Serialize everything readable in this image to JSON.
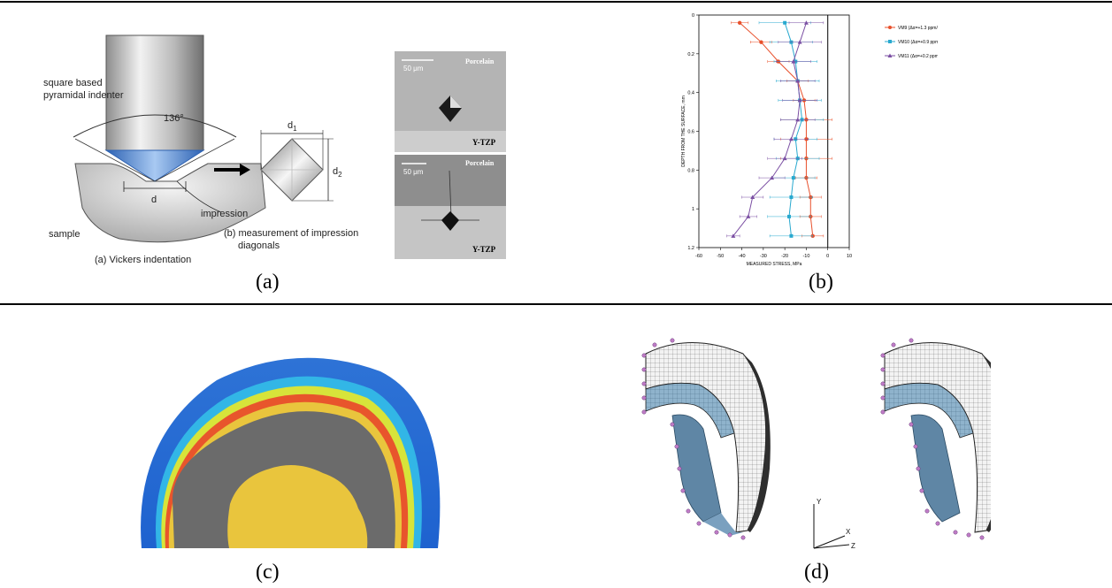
{
  "captions": {
    "a": "(a)",
    "b": "(b)",
    "c": "(c)",
    "d": "(d)"
  },
  "vickers": {
    "indenter_label_1": "square based",
    "indenter_label_2": "pyramidal indenter",
    "angle": "136°",
    "d1": "d",
    "d1_sub": "1",
    "d2": "d",
    "d2_sub": "2",
    "d": "d",
    "impression": "impression",
    "sample": "sample",
    "caption_a": "(a)  Vickers indentation",
    "caption_b1": "(b)  measurement of impression",
    "caption_b2": "diagonals"
  },
  "micrographs": {
    "top": {
      "scale": "50 μm",
      "upper": "Porcelain",
      "lower": "Y-TZP"
    },
    "bottom": {
      "scale": "50 μm",
      "upper": "Porcelain",
      "lower": "Y-TZP"
    }
  },
  "chart_data": {
    "type": "line",
    "xlabel": "MEASURED STRESS,  MPa",
    "ylabel": "DEPTH FROM THE SURFACE,  mm",
    "xlim": [
      -60,
      10
    ],
    "ylim": [
      0,
      1.2
    ],
    "xticks": [
      "-60",
      "-50",
      "-40",
      "-30",
      "-20",
      "-10",
      "0",
      "10"
    ],
    "yticks": [
      "0",
      "0.2",
      "0.4",
      "0.6",
      "0.8",
      "1",
      "1.2"
    ],
    "y_axis_inverted": true,
    "vertical_line_x": 0,
    "legend_position": "right",
    "series": [
      {
        "name": "VM9 (Δα=+1.3 ppm/°C)",
        "color": "#e8502b",
        "marker": "circle",
        "x": [
          -41,
          -31,
          -23,
          -14,
          -11,
          -10,
          -10,
          -10,
          -10,
          -8,
          -8,
          -7
        ],
        "y": [
          0.04,
          0.14,
          0.24,
          0.34,
          0.44,
          0.54,
          0.64,
          0.74,
          0.84,
          0.94,
          1.04,
          1.14
        ],
        "err": [
          4,
          5,
          5,
          5,
          5,
          12,
          12,
          12,
          5,
          5,
          5,
          5
        ]
      },
      {
        "name": "VM10 (Δα=+0.9 ppm/°C)",
        "color": "#29a9cf",
        "marker": "square",
        "x": [
          -20,
          -17,
          -15,
          -14,
          -13,
          -12,
          -15,
          -14,
          -16,
          -17,
          -18,
          -17
        ],
        "y": [
          0.04,
          0.14,
          0.24,
          0.34,
          0.44,
          0.54,
          0.64,
          0.74,
          0.84,
          0.94,
          1.04,
          1.14
        ],
        "err": [
          12,
          10,
          10,
          10,
          10,
          10,
          10,
          10,
          10,
          10,
          10,
          10
        ]
      },
      {
        "name": "VM11 (Δα=+0.2 ppm/°C)",
        "color": "#7b4fa3",
        "marker": "triangle",
        "x": [
          -10,
          -13,
          -16,
          -14,
          -13,
          -14,
          -17,
          -20,
          -26,
          -35,
          -37,
          -44
        ],
        "y": [
          0.04,
          0.14,
          0.24,
          0.34,
          0.44,
          0.54,
          0.64,
          0.74,
          0.84,
          0.94,
          1.04,
          1.14
        ],
        "err": [
          8,
          10,
          8,
          8,
          8,
          8,
          8,
          8,
          6,
          5,
          4,
          3
        ]
      }
    ]
  },
  "fea": {
    "axis_y": "Y",
    "axis_x": "X",
    "axis_z": "Z"
  }
}
